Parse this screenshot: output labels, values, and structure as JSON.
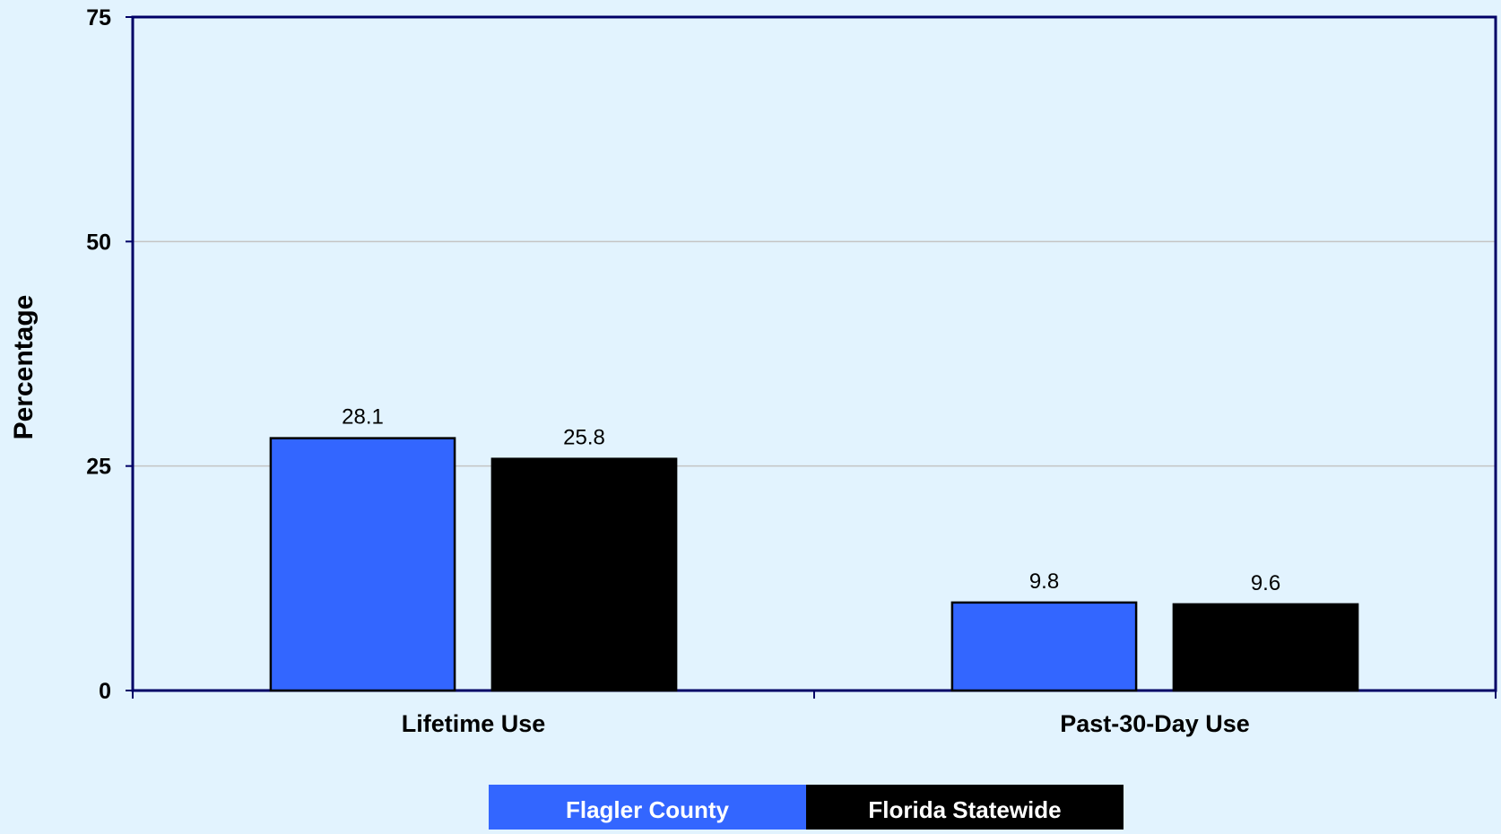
{
  "chart_data": {
    "type": "bar",
    "title": "",
    "xlabel": "",
    "ylabel": "Percentage",
    "categories": [
      "Lifetime Use",
      "Past-30-Day Use"
    ],
    "series": [
      {
        "name": "Flagler County",
        "values": [
          28.1,
          9.8
        ],
        "color": "#3366ff"
      },
      {
        "name": "Florida Statewide",
        "values": [
          25.8,
          9.6
        ],
        "color": "#000000"
      }
    ],
    "ylim": [
      0,
      75
    ],
    "yticks": [
      0,
      25,
      50,
      75
    ],
    "grid": true,
    "legend": "bottom"
  }
}
